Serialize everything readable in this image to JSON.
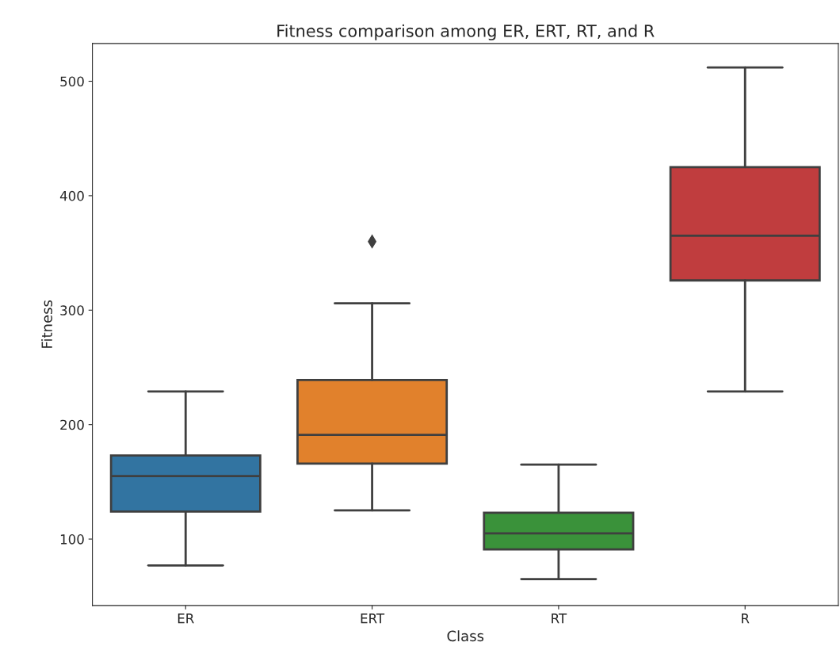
{
  "chart_data": {
    "type": "box",
    "title": "Fitness comparison among ER, ERT, RT, and R",
    "xlabel": "Class",
    "ylabel": "Fitness",
    "categories": [
      "ER",
      "ERT",
      "RT",
      "R"
    ],
    "colors": [
      "#3274a1",
      "#e1812c",
      "#3a923a",
      "#c03d3e"
    ],
    "boxes": [
      {
        "low": 77,
        "q1": 124,
        "median": 155,
        "q3": 173,
        "high": 229
      },
      {
        "low": 125,
        "q1": 166,
        "median": 191,
        "q3": 239,
        "high": 306,
        "outliers": [
          360
        ]
      },
      {
        "low": 65,
        "q1": 91,
        "median": 105,
        "q3": 123,
        "high": 165
      },
      {
        "low": 229,
        "q1": 326,
        "median": 365,
        "q3": 425,
        "high": 512
      }
    ],
    "ylim": [
      42,
      533
    ],
    "yticks": [
      100,
      200,
      300,
      400,
      500
    ],
    "grid": false,
    "marker": "diamond"
  }
}
